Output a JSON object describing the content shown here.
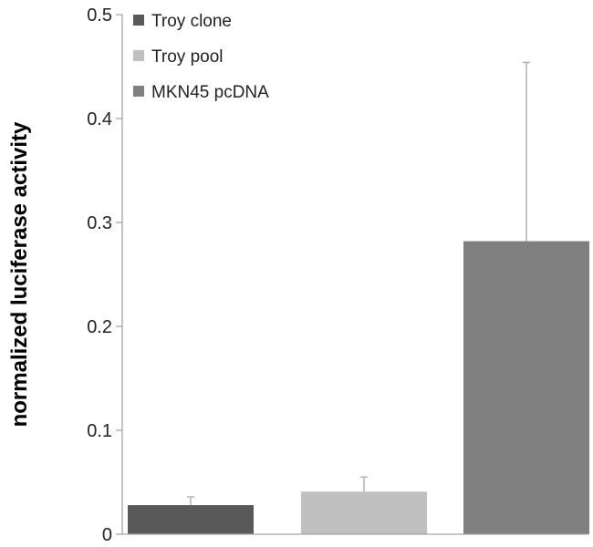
{
  "chart_data": {
    "type": "bar",
    "title": "",
    "xlabel": "",
    "ylabel": "normalized luciferase activity",
    "ylim": [
      0,
      0.5
    ],
    "yticks": [
      0,
      0.1,
      0.2,
      0.3,
      0.4,
      0.5
    ],
    "ytick_labels": [
      "0",
      "0.1",
      "0.2",
      "0.3",
      "0.4",
      "0.5"
    ],
    "grid": false,
    "legend_position": "top-left",
    "series": [
      {
        "name": "Troy clone",
        "value": 0.028,
        "error": 0.008,
        "color": "#595959"
      },
      {
        "name": "Troy pool",
        "value": 0.041,
        "error": 0.014,
        "color": "#c0c0c0"
      },
      {
        "name": "MKN45 pcDNA",
        "value": 0.282,
        "error": 0.172,
        "color": "#808080"
      }
    ]
  }
}
